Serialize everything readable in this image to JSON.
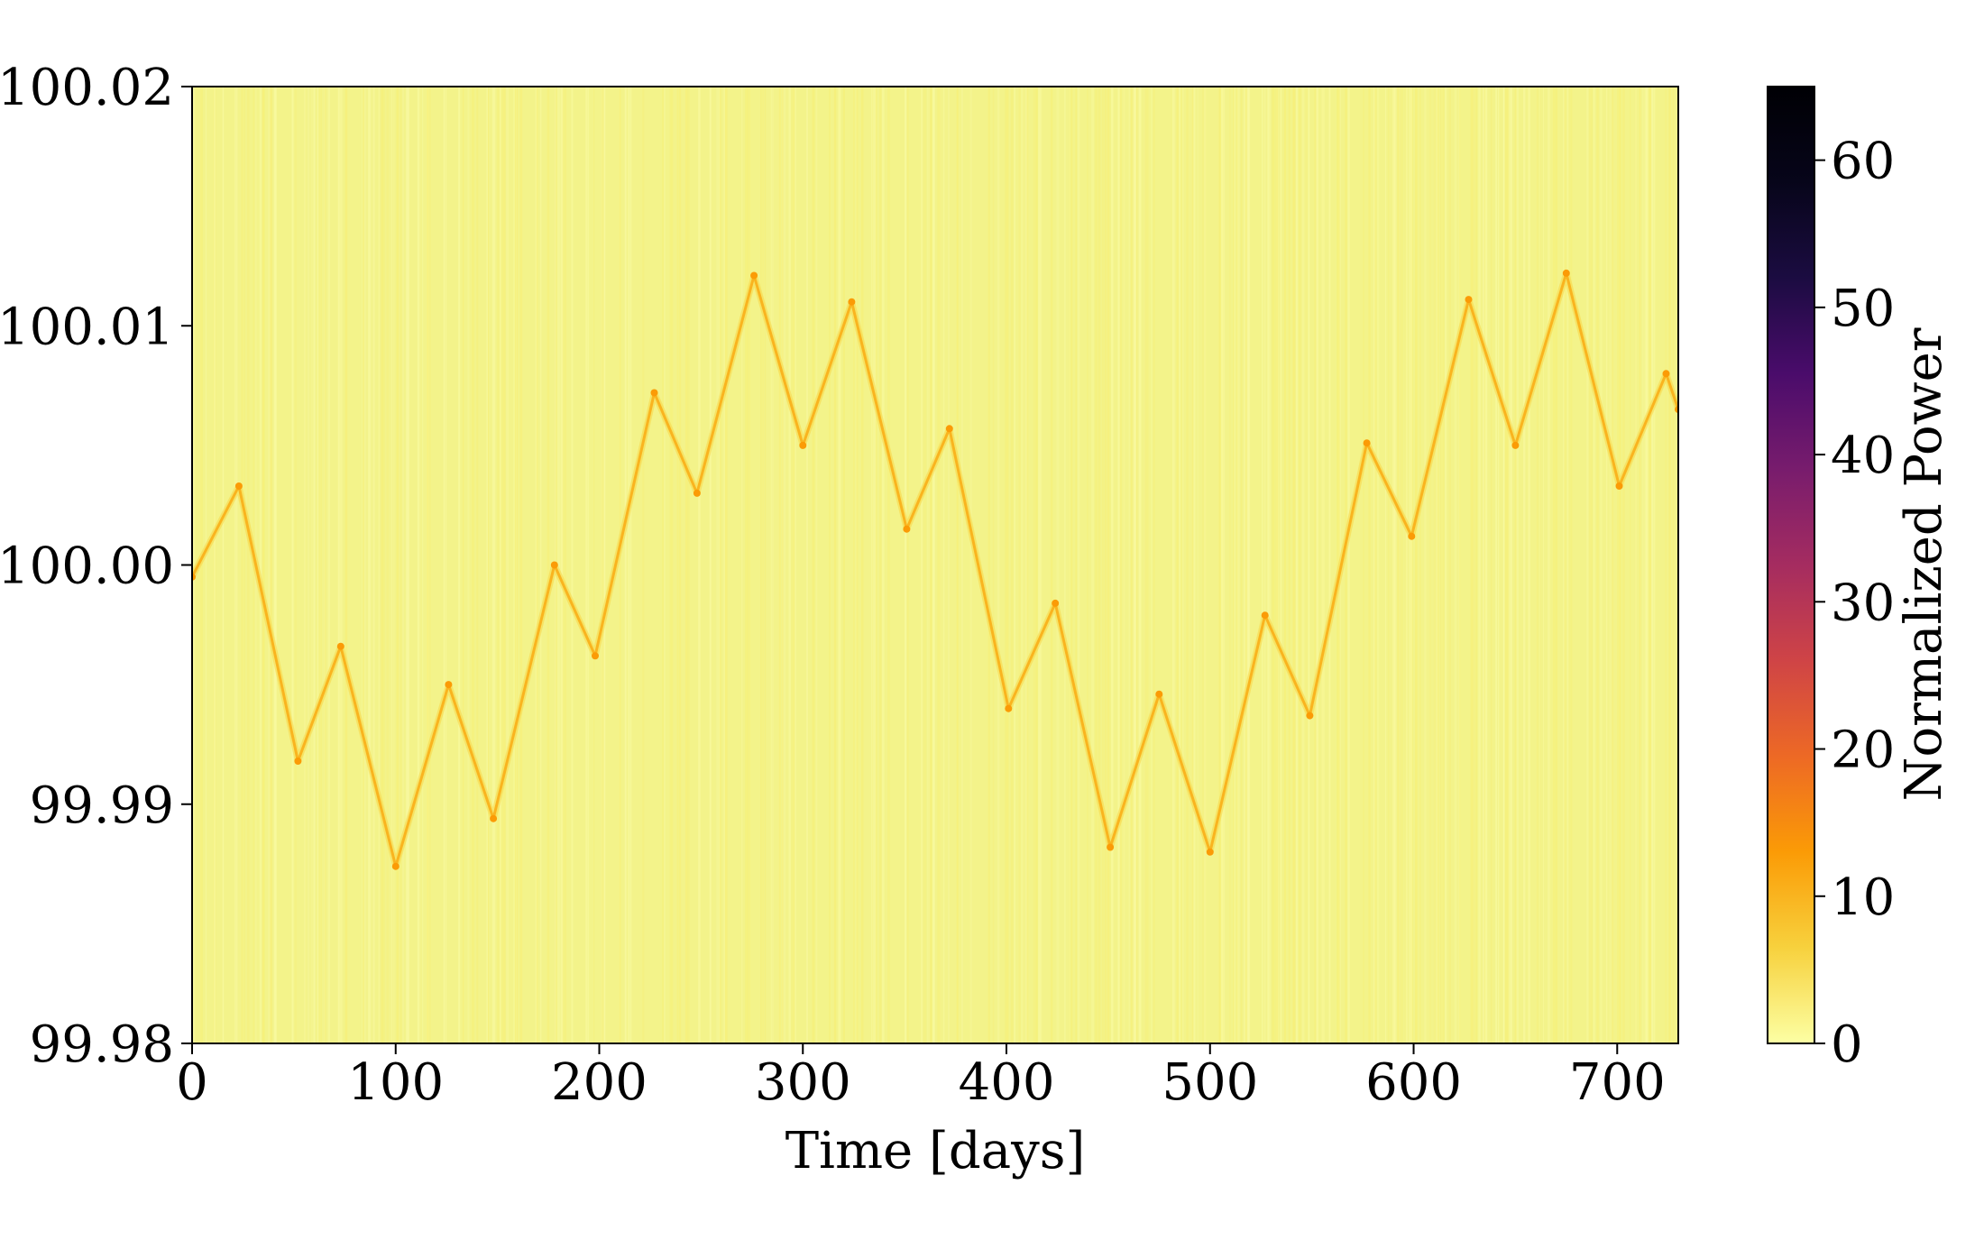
{
  "chart_data": {
    "type": "heatmap",
    "title": "",
    "xlabel": "Time [days]",
    "ylabel": "",
    "xlim": [
      0,
      730
    ],
    "ylim": [
      99.98,
      100.02
    ],
    "xticks": [
      "0",
      "100",
      "200",
      "300",
      "400",
      "500",
      "600",
      "700"
    ],
    "xtick_values": [
      0,
      100,
      200,
      300,
      400,
      500,
      600,
      700
    ],
    "yticks": [
      "99.98",
      "99.99",
      "100.00",
      "100.01",
      "100.02"
    ],
    "ytick_values": [
      99.98,
      99.99,
      100.0,
      100.01,
      100.02
    ],
    "colorbar": {
      "label": "Normalized Power",
      "colormap": "inferno_r",
      "range": [
        0,
        65
      ],
      "ticks": [
        "0",
        "10",
        "20",
        "30",
        "40",
        "50",
        "60"
      ],
      "tick_values": [
        0,
        10,
        20,
        30,
        40,
        50,
        60
      ]
    },
    "background_power": 2,
    "ridge_power": 10,
    "ridge": {
      "name": "",
      "x": [
        0,
        23,
        52,
        73,
        100,
        126,
        148,
        178,
        198,
        227,
        248,
        276,
        300,
        324,
        351,
        372,
        401,
        424,
        451,
        475,
        500,
        527,
        549,
        577,
        599,
        627,
        650,
        675,
        701,
        724,
        730
      ],
      "y": [
        99.9995,
        100.0033,
        99.9918,
        99.9966,
        99.9874,
        99.995,
        99.9894,
        100.0,
        99.9962,
        100.0072,
        100.003,
        100.0121,
        100.005,
        100.011,
        100.0015,
        100.0057,
        99.994,
        99.9984,
        99.9882,
        99.9946,
        99.988,
        99.9979,
        99.9937,
        100.0051,
        100.0012,
        100.0111,
        100.005,
        100.0122,
        100.0033,
        100.008,
        100.0065
      ]
    }
  }
}
